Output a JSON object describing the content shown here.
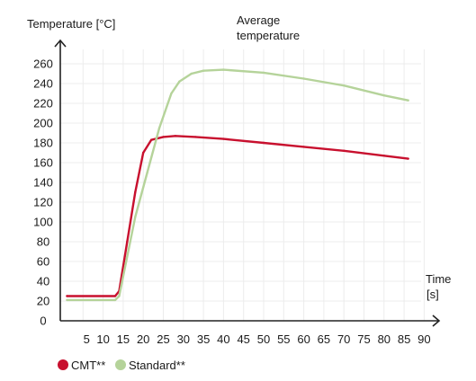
{
  "chart_data": {
    "type": "line",
    "ylabel": "Temperature [°C]",
    "xlabel_line1": "Time",
    "xlabel_line2": "[s]",
    "annotation_line1": "Average",
    "annotation_line2": "temperature",
    "x_ticks": [
      "5",
      "10",
      "15",
      "20",
      "25",
      "30",
      "35",
      "40",
      "45",
      "50",
      "55",
      "60",
      "65",
      "70",
      "75",
      "80",
      "85",
      "90"
    ],
    "y_ticks": [
      "0",
      "20",
      "40",
      "60",
      "80",
      "100",
      "120",
      "140",
      "160",
      "180",
      "200",
      "220",
      "240",
      "260"
    ],
    "xlim": [
      0,
      92
    ],
    "ylim": [
      0,
      270
    ],
    "grid": true,
    "legend_position": "bottom-left",
    "series": [
      {
        "name": "CMT**",
        "color": "#c8102e",
        "points": [
          [
            1,
            25
          ],
          [
            13,
            25
          ],
          [
            14,
            30
          ],
          [
            16,
            80
          ],
          [
            18,
            130
          ],
          [
            20,
            170
          ],
          [
            22,
            183
          ],
          [
            25,
            186
          ],
          [
            28,
            187
          ],
          [
            33,
            186
          ],
          [
            40,
            184
          ],
          [
            50,
            180
          ],
          [
            60,
            176
          ],
          [
            70,
            172
          ],
          [
            80,
            167
          ],
          [
            86,
            164
          ]
        ]
      },
      {
        "name": "Standard**",
        "color": "#b5d39a",
        "points": [
          [
            1,
            21
          ],
          [
            13,
            21
          ],
          [
            14,
            25
          ],
          [
            16,
            65
          ],
          [
            18,
            105
          ],
          [
            21,
            150
          ],
          [
            24,
            195
          ],
          [
            27,
            230
          ],
          [
            29,
            242
          ],
          [
            32,
            250
          ],
          [
            35,
            253
          ],
          [
            40,
            254
          ],
          [
            50,
            251
          ],
          [
            60,
            245
          ],
          [
            70,
            238
          ],
          [
            80,
            228
          ],
          [
            86,
            223
          ]
        ]
      }
    ]
  }
}
